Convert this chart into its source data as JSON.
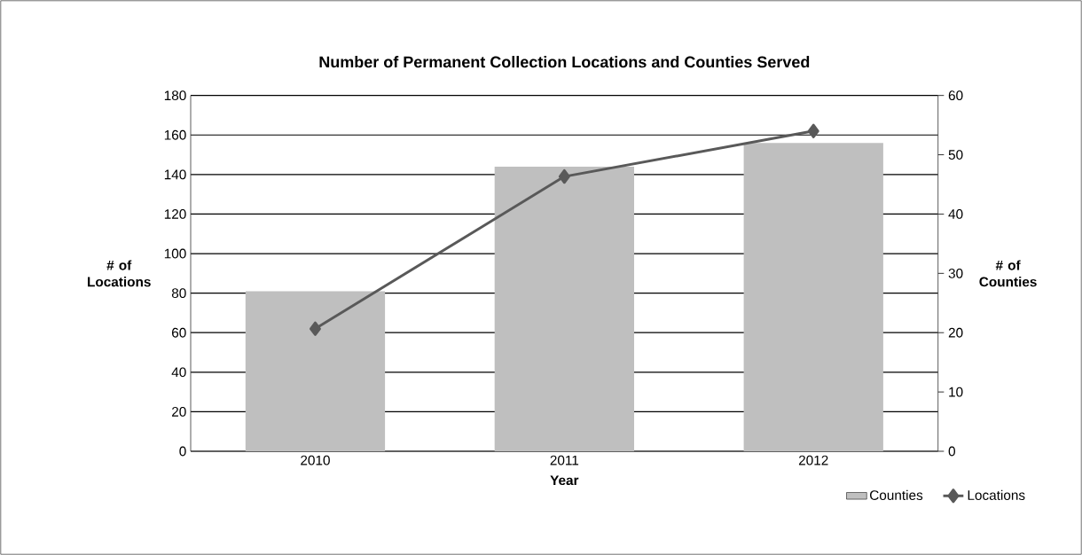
{
  "chart_data": {
    "type": "bar",
    "title": "Number of Permanent Collection Locations and Counties Served",
    "xlabel": "Year",
    "ylabel": "# of Locations",
    "y2label": "# of Counties",
    "categories": [
      "2010",
      "2011",
      "2012"
    ],
    "series": [
      {
        "name": "Counties",
        "axis": "y2",
        "color": "#bfbfbf",
        "values": [
          27,
          48,
          52
        ]
      },
      {
        "name": "Locations",
        "type": "line",
        "color": "#595959",
        "marker": "diamond",
        "values": [
          62,
          139,
          162
        ]
      }
    ],
    "ylim": [
      0,
      180
    ],
    "yticks": [
      0,
      20,
      40,
      60,
      80,
      100,
      120,
      140,
      160,
      180
    ],
    "y2lim": [
      0,
      60
    ],
    "y2ticks": [
      0,
      10,
      20,
      30,
      40,
      50,
      60
    ],
    "grid": "y",
    "legend": "bottom right"
  }
}
